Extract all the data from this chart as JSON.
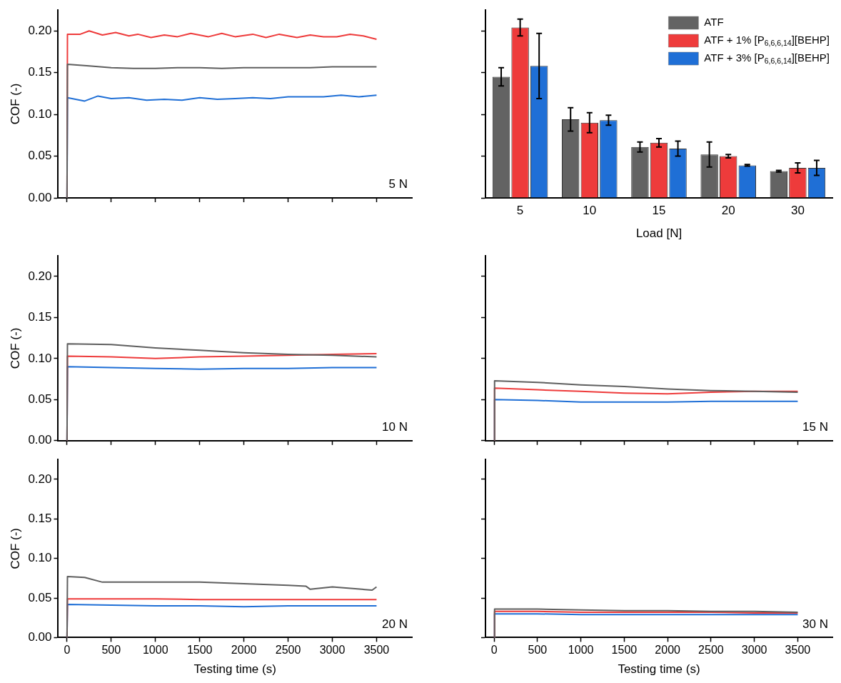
{
  "chart_data": [
    {
      "type": "line",
      "ylabel": "COF (-)",
      "xlim": [
        -100,
        3900
      ],
      "ylim": [
        0,
        0.225
      ],
      "xticks": [
        0,
        500,
        1000,
        1500,
        2000,
        2500,
        3000,
        3500
      ],
      "yticks": [
        {
          "value": 0,
          "label": "0.00"
        },
        {
          "value": 0.05,
          "label": "0.05"
        },
        {
          "value": 0.1,
          "label": "0.10"
        },
        {
          "value": 0.15,
          "label": "0.15"
        },
        {
          "value": 0.2,
          "label": "0.20"
        }
      ],
      "tick_labels": "y",
      "annotations": [
        "5 N"
      ],
      "series": [
        {
          "color": "#5f5f5f",
          "x": [
            0,
            5,
            250,
            500,
            750,
            1000,
            1250,
            1500,
            1750,
            2000,
            2250,
            2500,
            2750,
            3000,
            3250,
            3500
          ],
          "values": [
            0,
            0.16,
            0.158,
            0.156,
            0.155,
            0.155,
            0.156,
            0.156,
            0.155,
            0.156,
            0.156,
            0.156,
            0.156,
            0.157,
            0.157,
            0.157
          ]
        },
        {
          "color": "#ee3b3b",
          "x": [
            0,
            5,
            150,
            250,
            400,
            550,
            700,
            800,
            950,
            1100,
            1250,
            1400,
            1600,
            1750,
            1900,
            2100,
            2250,
            2400,
            2600,
            2750,
            2900,
            3050,
            3200,
            3350,
            3500
          ],
          "values": [
            0,
            0.196,
            0.196,
            0.2,
            0.195,
            0.198,
            0.194,
            0.196,
            0.192,
            0.195,
            0.193,
            0.197,
            0.193,
            0.197,
            0.193,
            0.196,
            0.192,
            0.196,
            0.192,
            0.195,
            0.193,
            0.193,
            0.196,
            0.194,
            0.19
          ]
        },
        {
          "color": "#1f6fd6",
          "x": [
            0,
            5,
            200,
            350,
            500,
            700,
            900,
            1100,
            1300,
            1500,
            1700,
            1900,
            2100,
            2300,
            2500,
            2700,
            2900,
            3100,
            3300,
            3500
          ],
          "values": [
            0,
            0.12,
            0.116,
            0.122,
            0.119,
            0.12,
            0.117,
            0.118,
            0.117,
            0.12,
            0.118,
            0.119,
            0.12,
            0.119,
            0.121,
            0.121,
            0.121,
            0.123,
            0.121,
            0.123
          ]
        }
      ]
    },
    {
      "type": "bar",
      "xlabel": "Load [N]",
      "categories": [
        "5",
        "10",
        "15",
        "20",
        "30"
      ],
      "ylim": [
        0,
        0.225
      ],
      "yticks": [
        0,
        0.05,
        0.1,
        0.15,
        0.2
      ],
      "tick_labels": "x",
      "legend": "top right",
      "series": [
        {
          "name": "ATF",
          "color": "#636363",
          "values": [
            0.145,
            0.094,
            0.061,
            0.052,
            0.032
          ],
          "errors": [
            0.011,
            0.014,
            0.006,
            0.015,
            0.001
          ]
        },
        {
          "name": "ATF + 1% [P$_{6,6,6,14}$][BEHP]",
          "color": "#ee3b3b",
          "values": [
            0.204,
            0.09,
            0.066,
            0.05,
            0.036
          ],
          "errors": [
            0.01,
            0.012,
            0.005,
            0.002,
            0.006
          ]
        },
        {
          "name": "ATF + 3% [P$_{6,6,6,14}$][BEHP]",
          "color": "#1f6fd6",
          "values": [
            0.158,
            0.093,
            0.059,
            0.039,
            0.036
          ],
          "errors": [
            0.039,
            0.006,
            0.009,
            0.001,
            0.009
          ]
        }
      ]
    },
    {
      "type": "line",
      "ylabel": "COF (-)",
      "xlim": [
        -100,
        3900
      ],
      "ylim": [
        0,
        0.225
      ],
      "xticks": [
        0,
        500,
        1000,
        1500,
        2000,
        2500,
        3000,
        3500
      ],
      "yticks": [
        {
          "value": 0,
          "label": "0.00"
        },
        {
          "value": 0.05,
          "label": "0.05"
        },
        {
          "value": 0.1,
          "label": "0.10"
        },
        {
          "value": 0.15,
          "label": "0.15"
        },
        {
          "value": 0.2,
          "label": "0.20"
        }
      ],
      "tick_labels": "y",
      "annotations": [
        "10 N"
      ],
      "series": [
        {
          "color": "#5f5f5f",
          "x": [
            0,
            5,
            500,
            1000,
            1500,
            2000,
            2500,
            3000,
            3500
          ],
          "values": [
            0,
            0.118,
            0.117,
            0.113,
            0.11,
            0.107,
            0.105,
            0.104,
            0.102
          ]
        },
        {
          "color": "#ee3b3b",
          "x": [
            0,
            5,
            500,
            1000,
            1500,
            2000,
            2500,
            3000,
            3500
          ],
          "values": [
            0,
            0.103,
            0.102,
            0.1,
            0.102,
            0.103,
            0.104,
            0.105,
            0.106
          ]
        },
        {
          "color": "#1f6fd6",
          "x": [
            0,
            5,
            500,
            1000,
            1500,
            2000,
            2500,
            3000,
            3500
          ],
          "values": [
            0,
            0.09,
            0.089,
            0.088,
            0.087,
            0.088,
            0.088,
            0.089,
            0.089
          ]
        }
      ]
    },
    {
      "type": "line",
      "xlim": [
        -100,
        3900
      ],
      "ylim": [
        0,
        0.225
      ],
      "xticks": [
        0,
        500,
        1000,
        1500,
        2000,
        2500,
        3000,
        3500
      ],
      "yticks": [
        0,
        0.05,
        0.1,
        0.15,
        0.2
      ],
      "tick_labels": false,
      "annotations": [
        "15 N"
      ],
      "series": [
        {
          "color": "#5f5f5f",
          "x": [
            0,
            5,
            500,
            1000,
            1500,
            2000,
            2500,
            3000,
            3500
          ],
          "values": [
            0,
            0.073,
            0.071,
            0.068,
            0.066,
            0.063,
            0.061,
            0.06,
            0.059
          ]
        },
        {
          "color": "#ee3b3b",
          "x": [
            0,
            5,
            500,
            1000,
            1500,
            2000,
            2500,
            3000,
            3500
          ],
          "values": [
            0,
            0.064,
            0.062,
            0.06,
            0.058,
            0.057,
            0.059,
            0.06,
            0.06
          ]
        },
        {
          "color": "#1f6fd6",
          "x": [
            0,
            5,
            500,
            1000,
            1500,
            2000,
            2500,
            3000,
            3500
          ],
          "values": [
            0,
            0.05,
            0.049,
            0.047,
            0.047,
            0.047,
            0.048,
            0.048,
            0.048
          ]
        }
      ]
    },
    {
      "type": "line",
      "ylabel": "COF (-)",
      "xlabel": "Testing time (s)",
      "xlim": [
        -100,
        3900
      ],
      "ylim": [
        0,
        0.225
      ],
      "xticks": [
        0,
        500,
        1000,
        1500,
        2000,
        2500,
        3000,
        3500
      ],
      "yticks": [
        {
          "value": 0,
          "label": "0.00"
        },
        {
          "value": 0.05,
          "label": "0.05"
        },
        {
          "value": 0.1,
          "label": "0.10"
        },
        {
          "value": 0.15,
          "label": "0.15"
        },
        {
          "value": 0.2,
          "label": "0.20"
        }
      ],
      "annotations": [
        "20 N"
      ],
      "series": [
        {
          "color": "#5f5f5f",
          "x": [
            0,
            5,
            200,
            400,
            1000,
            1500,
            2000,
            2500,
            2700,
            2750,
            3000,
            3450,
            3500
          ],
          "values": [
            0,
            0.077,
            0.076,
            0.07,
            0.07,
            0.07,
            0.068,
            0.066,
            0.065,
            0.061,
            0.064,
            0.06,
            0.064
          ]
        },
        {
          "color": "#ee3b3b",
          "x": [
            0,
            5,
            500,
            1000,
            1500,
            2000,
            2500,
            3000,
            3500
          ],
          "values": [
            0,
            0.049,
            0.049,
            0.049,
            0.048,
            0.048,
            0.048,
            0.048,
            0.048
          ]
        },
        {
          "color": "#1f6fd6",
          "x": [
            0,
            5,
            500,
            1000,
            1500,
            2000,
            2500,
            3000,
            3500
          ],
          "values": [
            0,
            0.042,
            0.041,
            0.04,
            0.04,
            0.039,
            0.04,
            0.04,
            0.04
          ]
        }
      ]
    },
    {
      "type": "line",
      "xlabel": "Testing time (s)",
      "xlim": [
        -100,
        3900
      ],
      "ylim": [
        0,
        0.225
      ],
      "xticks": [
        0,
        500,
        1000,
        1500,
        2000,
        2500,
        3000,
        3500
      ],
      "yticks": [
        0,
        0.05,
        0.1,
        0.15,
        0.2
      ],
      "tick_labels": "x",
      "annotations": [
        "30 N"
      ],
      "series": [
        {
          "color": "#5f5f5f",
          "x": [
            0,
            5,
            500,
            1000,
            1500,
            2000,
            2500,
            3000,
            3500
          ],
          "values": [
            0,
            0.036,
            0.036,
            0.035,
            0.034,
            0.034,
            0.033,
            0.033,
            0.032
          ]
        },
        {
          "color": "#ee3b3b",
          "x": [
            0,
            5,
            500,
            1000,
            1500,
            2000,
            2500,
            3000,
            3500
          ],
          "values": [
            0,
            0.033,
            0.033,
            0.032,
            0.032,
            0.032,
            0.032,
            0.031,
            0.031
          ]
        },
        {
          "color": "#1f6fd6",
          "x": [
            0,
            5,
            500,
            1000,
            1500,
            2000,
            2500,
            3000,
            3500
          ],
          "values": [
            0,
            0.03,
            0.03,
            0.029,
            0.029,
            0.029,
            0.029,
            0.029,
            0.029
          ]
        }
      ]
    }
  ]
}
